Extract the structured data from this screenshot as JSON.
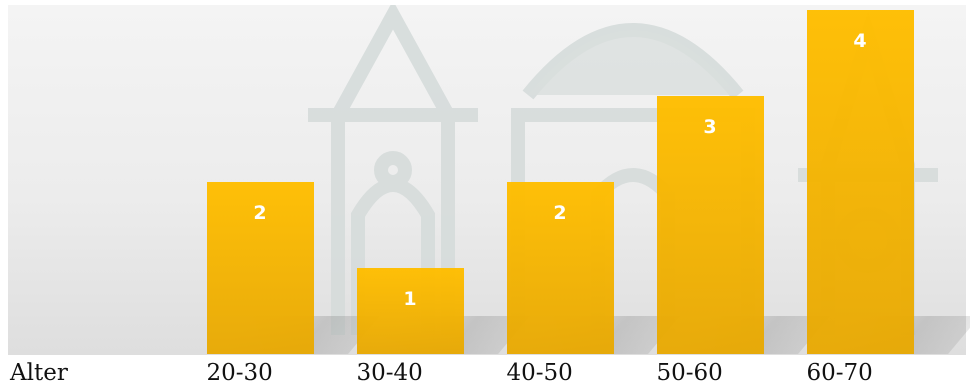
{
  "chart_data": {
    "type": "bar",
    "categories": [
      "20-30",
      "30-40",
      "40-50",
      "50-60",
      "60-70"
    ],
    "values": [
      2,
      1,
      2,
      3,
      4
    ],
    "xlabel": "Alter",
    "ylim": [
      0,
      4
    ],
    "grid": false,
    "legend": "none",
    "bar_color": "#FFBE00",
    "data_labels": true
  }
}
